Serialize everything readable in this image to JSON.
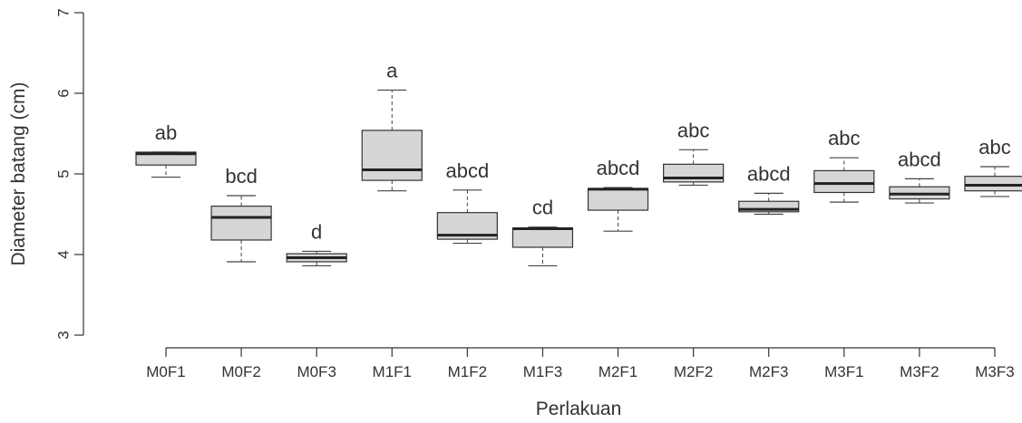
{
  "chart_data": {
    "type": "boxplot",
    "xlabel": "Perlakuan",
    "ylabel": "Diameter batang (cm)",
    "ylim": [
      3,
      7
    ],
    "yticks": [
      3,
      4,
      5,
      6,
      7
    ],
    "grid": false,
    "categories": [
      "M0F1",
      "M0F2",
      "M0F3",
      "M1F1",
      "M1F2",
      "M1F3",
      "M2F1",
      "M2F2",
      "M2F3",
      "M3F1",
      "M3F2",
      "M3F3"
    ],
    "boxes": [
      {
        "category": "M0F1",
        "min": 4.96,
        "q1": 5.11,
        "median": 5.25,
        "q3": 5.27,
        "max": 5.27,
        "letter": "ab"
      },
      {
        "category": "M0F2",
        "min": 3.91,
        "q1": 4.18,
        "median": 4.46,
        "q3": 4.6,
        "max": 4.73,
        "letter": "bcd"
      },
      {
        "category": "M0F3",
        "min": 3.86,
        "q1": 3.91,
        "median": 3.96,
        "q3": 4.01,
        "max": 4.04,
        "letter": "d"
      },
      {
        "category": "M1F1",
        "min": 4.79,
        "q1": 4.92,
        "median": 5.05,
        "q3": 5.54,
        "max": 6.04,
        "letter": "a"
      },
      {
        "category": "M1F2",
        "min": 4.14,
        "q1": 4.19,
        "median": 4.24,
        "q3": 4.52,
        "max": 4.8,
        "letter": "abcd"
      },
      {
        "category": "M1F3",
        "min": 3.86,
        "q1": 4.09,
        "median": 4.32,
        "q3": 4.33,
        "max": 4.34,
        "letter": "cd"
      },
      {
        "category": "M2F1",
        "min": 4.29,
        "q1": 4.55,
        "median": 4.81,
        "q3": 4.82,
        "max": 4.83,
        "letter": "abcd"
      },
      {
        "category": "M2F2",
        "min": 4.86,
        "q1": 4.9,
        "median": 4.95,
        "q3": 5.12,
        "max": 5.3,
        "letter": "abc"
      },
      {
        "category": "M2F3",
        "min": 4.5,
        "q1": 4.53,
        "median": 4.56,
        "q3": 4.66,
        "max": 4.76,
        "letter": "abcd"
      },
      {
        "category": "M3F1",
        "min": 4.65,
        "q1": 4.77,
        "median": 4.88,
        "q3": 5.04,
        "max": 5.2,
        "letter": "abc"
      },
      {
        "category": "M3F2",
        "min": 4.64,
        "q1": 4.69,
        "median": 4.75,
        "q3": 4.84,
        "max": 4.94,
        "letter": "abcd"
      },
      {
        "category": "M3F3",
        "min": 4.72,
        "q1": 4.79,
        "median": 4.86,
        "q3": 4.97,
        "max": 5.09,
        "letter": "abc"
      }
    ],
    "colors": {
      "box_fill": "#d6d6d6",
      "stroke": "#333333",
      "median": "#222222"
    }
  }
}
